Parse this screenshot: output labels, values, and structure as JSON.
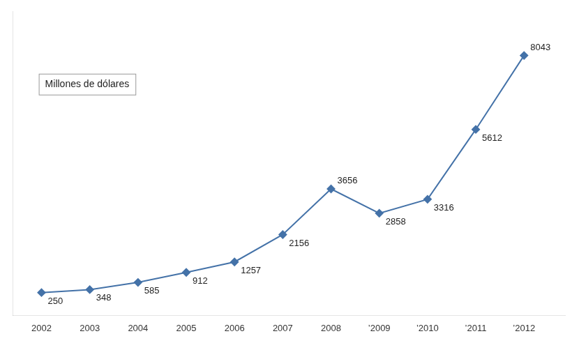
{
  "chart_data": {
    "type": "line",
    "annotations": [
      "Millones de dólares"
    ],
    "x": [
      2002,
      2003,
      2004,
      2005,
      2006,
      2007,
      2008,
      2009,
      2010,
      2011,
      2012
    ],
    "values": [
      250,
      348,
      585,
      912,
      1257,
      2156,
      3656,
      2858,
      3316,
      5612,
      8043
    ],
    "color": "#4472a8",
    "marker": "diamond",
    "xlim": [
      2001.4,
      2012.85
    ],
    "xticks": [
      2002,
      2003,
      2004,
      2005,
      2006,
      2007,
      2008,
      {
        "value": 2009,
        "label": "’2009"
      },
      {
        "value": 2010,
        "label": "’2010"
      },
      {
        "value": 2011,
        "label": "’2011"
      },
      {
        "value": 2012,
        "label": "’2012"
      }
    ],
    "ylim": [
      -500,
      9500
    ],
    "grid": false,
    "data_labels": true,
    "tick_labels": "x"
  }
}
